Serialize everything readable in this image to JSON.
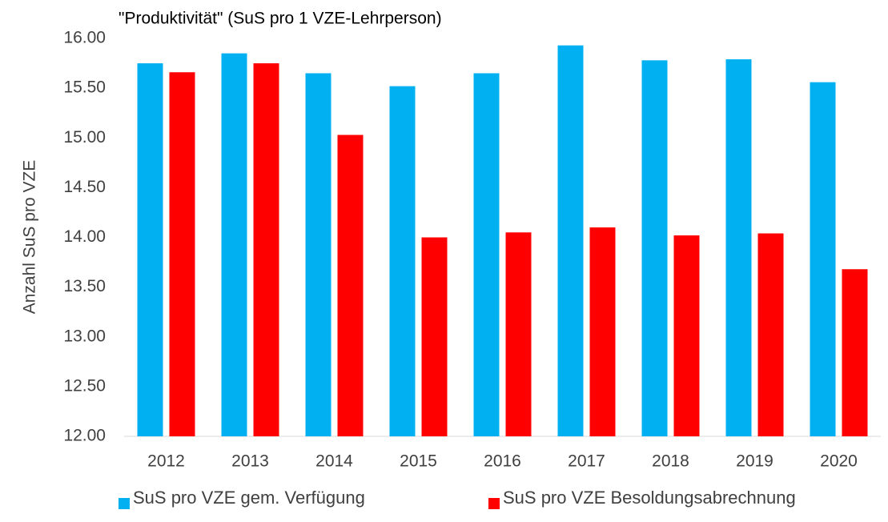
{
  "chart_data": {
    "type": "bar",
    "title": "\"Produktivität\" (SuS pro 1 VZE-Lehrperson)",
    "y_label": "Anzahl SuS pro VZE",
    "categories": [
      "2012",
      "2013",
      "2014",
      "2015",
      "2016",
      "2017",
      "2018",
      "2019",
      "2020"
    ],
    "series": [
      {
        "name": "SuS pro VZE gem. Verfügung",
        "color": "#00b0f0",
        "values": [
          15.75,
          15.85,
          15.65,
          15.52,
          15.65,
          15.93,
          15.78,
          15.79,
          15.56
        ]
      },
      {
        "name": "SuS pro VZE Besoldungsabrechnung",
        "color": "#ff0000",
        "values": [
          15.66,
          15.75,
          15.03,
          14.0,
          14.05,
          14.1,
          14.02,
          14.04,
          13.68
        ]
      }
    ],
    "ylim": [
      12,
      16
    ],
    "yticks": [
      {
        "value": 12,
        "label": "12.00"
      },
      {
        "value": 12.5,
        "label": "12.50"
      },
      {
        "value": 13,
        "label": "13.00"
      },
      {
        "value": 13.5,
        "label": "13.50"
      },
      {
        "value": 14,
        "label": "14.00"
      },
      {
        "value": 14.5,
        "label": "14.50"
      },
      {
        "value": 15,
        "label": "15.00"
      },
      {
        "value": 15.5,
        "label": "15.50"
      },
      {
        "value": 16,
        "label": "16.00"
      }
    ],
    "grid": false,
    "legend": "bottom"
  }
}
